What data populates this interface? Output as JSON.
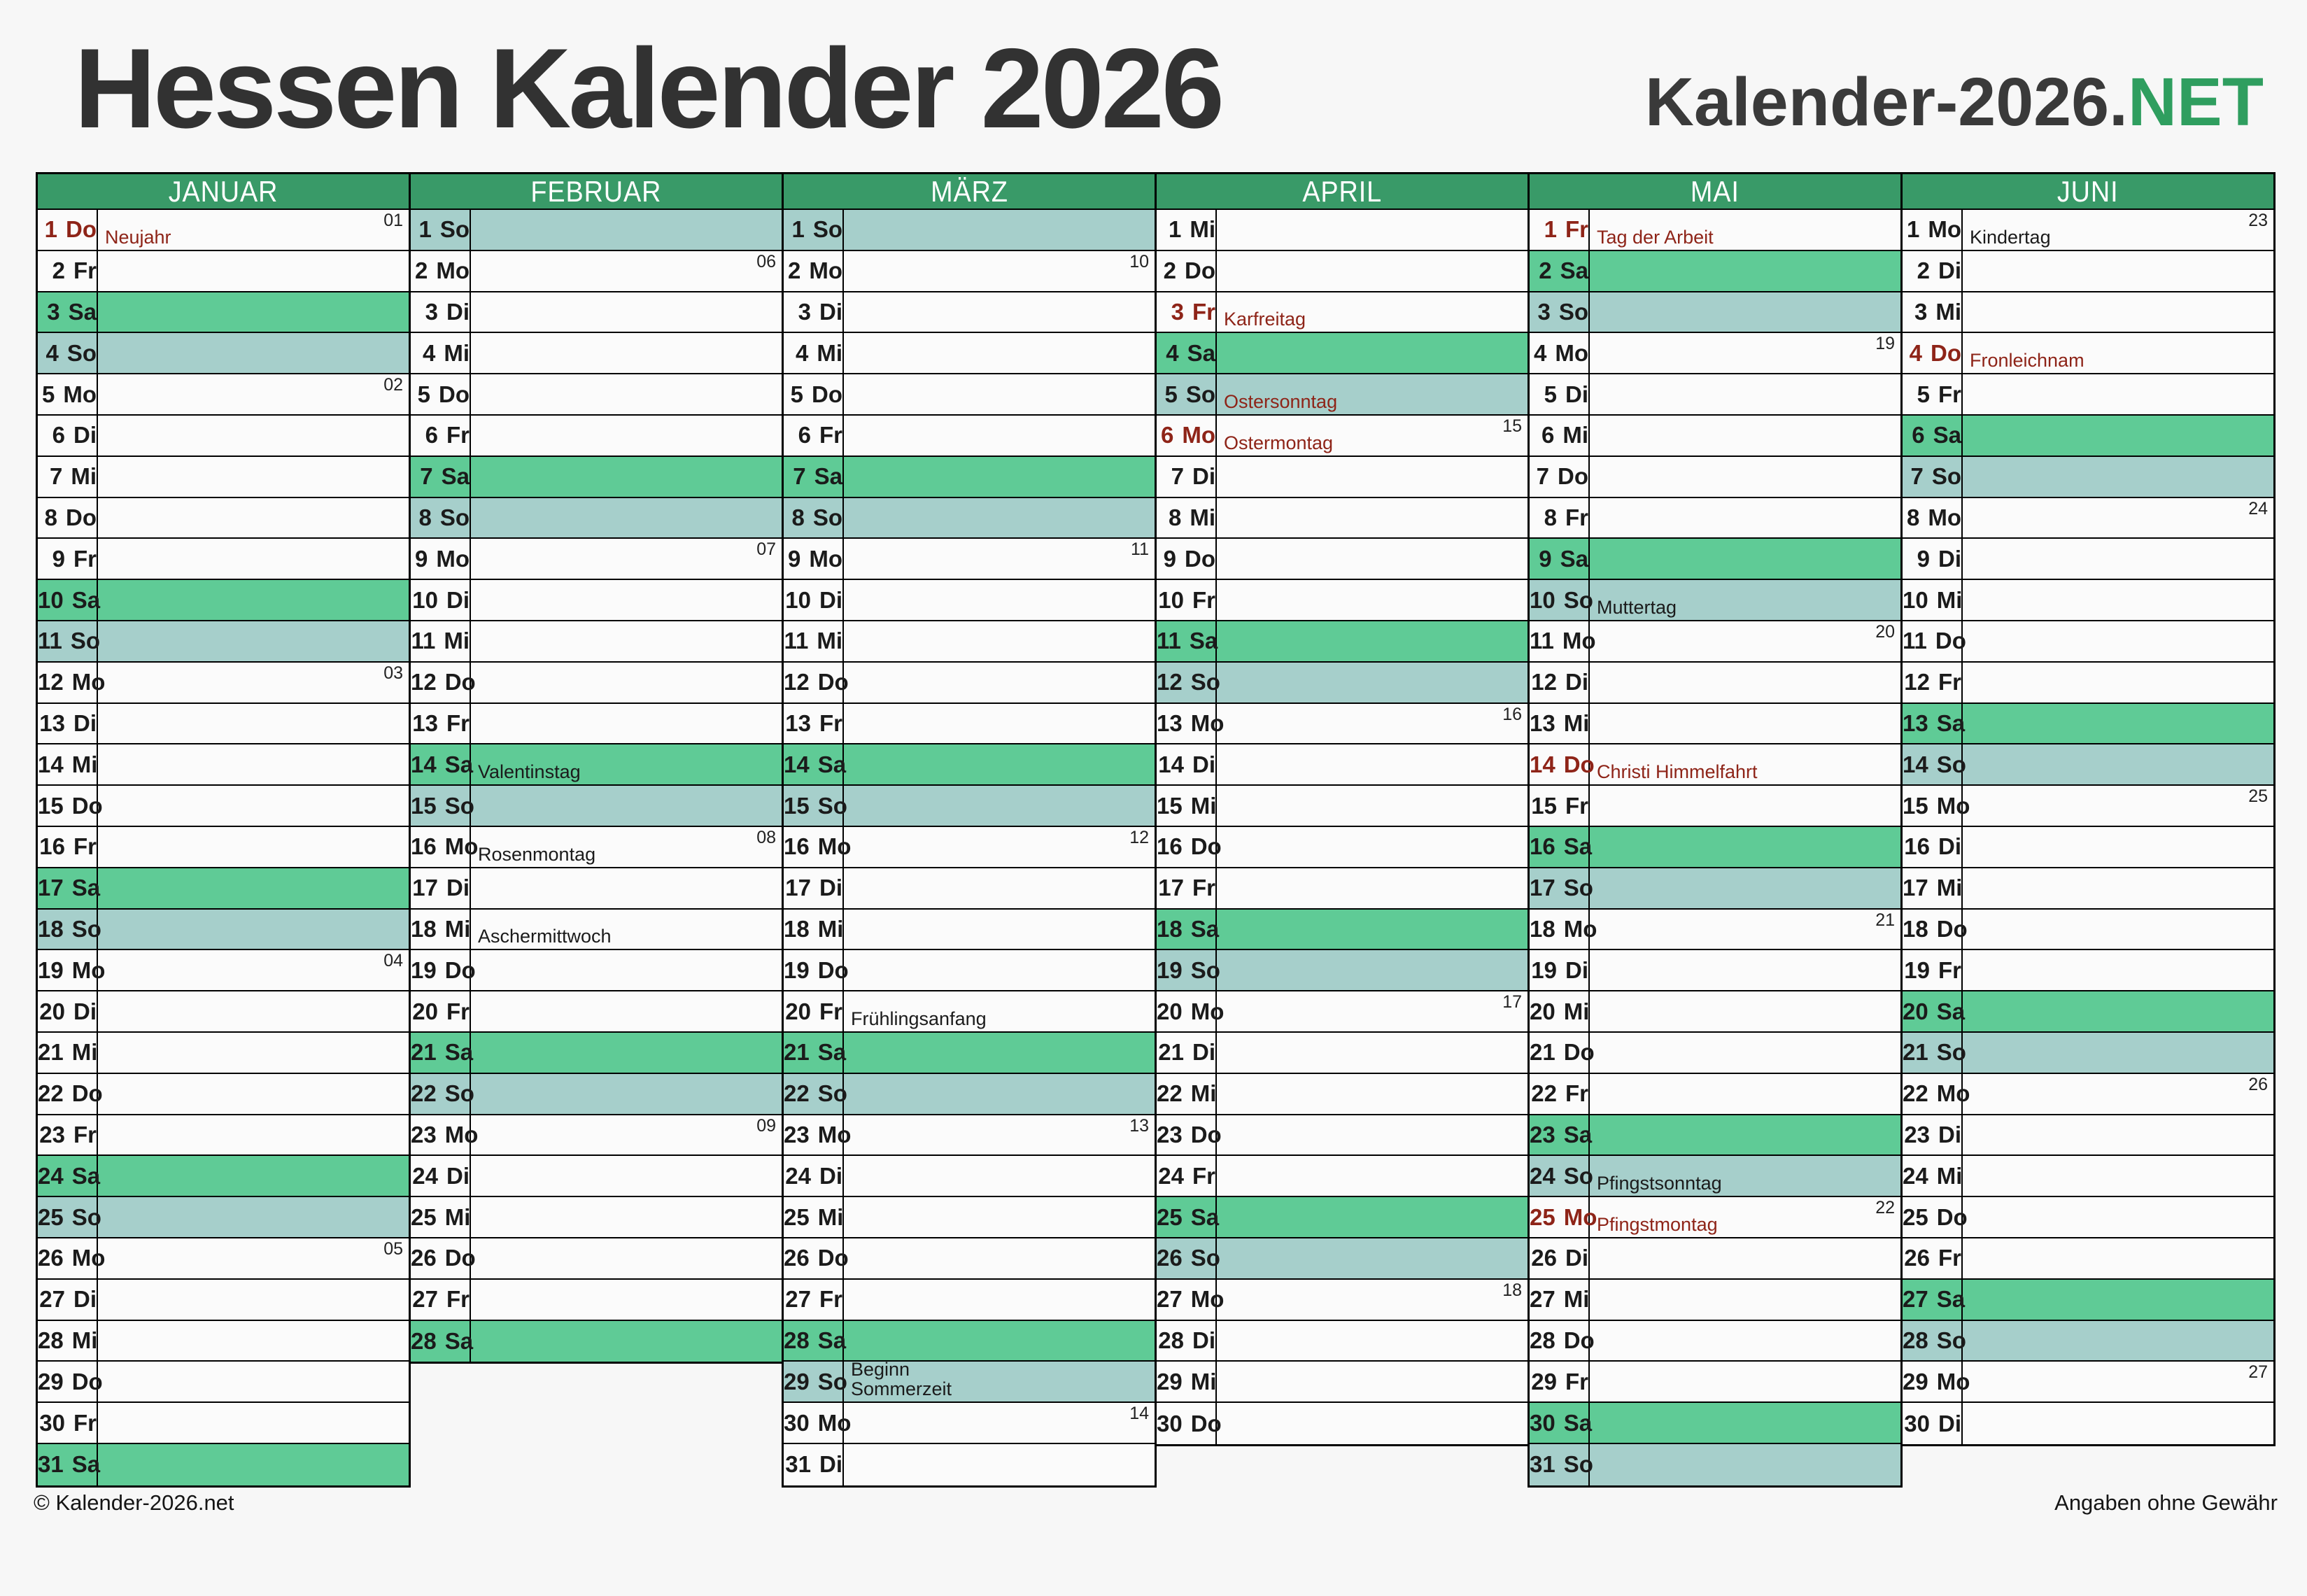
{
  "title": "Hessen Kalender 2026",
  "brand": {
    "prefix": "Kalender-2026.",
    "suffix": "NET"
  },
  "footer": {
    "left": "© Kalender-2026.net",
    "right": "Angaben ohne Gewähr"
  },
  "colors": {
    "header_green": "#399a68",
    "saturday_green": "#5fcb96",
    "sunday_teal": "#a6cfcb",
    "holiday_red": "#8e2418",
    "brand_green": "#2f9e5f",
    "title_gray": "#323232"
  },
  "months": [
    {
      "name": "JANUAR",
      "days": [
        {
          "d": 1,
          "w": "Do",
          "wk": "01",
          "n": "Neujahr",
          "nr": true,
          "hr": true
        },
        {
          "d": 2,
          "w": "Fr"
        },
        {
          "d": 3,
          "w": "Sa"
        },
        {
          "d": 4,
          "w": "So"
        },
        {
          "d": 5,
          "w": "Mo",
          "wk": "02"
        },
        {
          "d": 6,
          "w": "Di"
        },
        {
          "d": 7,
          "w": "Mi"
        },
        {
          "d": 8,
          "w": "Do"
        },
        {
          "d": 9,
          "w": "Fr"
        },
        {
          "d": 10,
          "w": "Sa"
        },
        {
          "d": 11,
          "w": "So"
        },
        {
          "d": 12,
          "w": "Mo",
          "wk": "03"
        },
        {
          "d": 13,
          "w": "Di"
        },
        {
          "d": 14,
          "w": "Mi"
        },
        {
          "d": 15,
          "w": "Do"
        },
        {
          "d": 16,
          "w": "Fr"
        },
        {
          "d": 17,
          "w": "Sa"
        },
        {
          "d": 18,
          "w": "So"
        },
        {
          "d": 19,
          "w": "Mo",
          "wk": "04"
        },
        {
          "d": 20,
          "w": "Di"
        },
        {
          "d": 21,
          "w": "Mi"
        },
        {
          "d": 22,
          "w": "Do"
        },
        {
          "d": 23,
          "w": "Fr"
        },
        {
          "d": 24,
          "w": "Sa"
        },
        {
          "d": 25,
          "w": "So"
        },
        {
          "d": 26,
          "w": "Mo",
          "wk": "05"
        },
        {
          "d": 27,
          "w": "Di"
        },
        {
          "d": 28,
          "w": "Mi"
        },
        {
          "d": 29,
          "w": "Do"
        },
        {
          "d": 30,
          "w": "Fr"
        },
        {
          "d": 31,
          "w": "Sa"
        }
      ]
    },
    {
      "name": "FEBRUAR",
      "days": [
        {
          "d": 1,
          "w": "So"
        },
        {
          "d": 2,
          "w": "Mo",
          "wk": "06"
        },
        {
          "d": 3,
          "w": "Di"
        },
        {
          "d": 4,
          "w": "Mi"
        },
        {
          "d": 5,
          "w": "Do"
        },
        {
          "d": 6,
          "w": "Fr"
        },
        {
          "d": 7,
          "w": "Sa"
        },
        {
          "d": 8,
          "w": "So"
        },
        {
          "d": 9,
          "w": "Mo",
          "wk": "07"
        },
        {
          "d": 10,
          "w": "Di"
        },
        {
          "d": 11,
          "w": "Mi"
        },
        {
          "d": 12,
          "w": "Do"
        },
        {
          "d": 13,
          "w": "Fr"
        },
        {
          "d": 14,
          "w": "Sa",
          "n": "Valentinstag"
        },
        {
          "d": 15,
          "w": "So"
        },
        {
          "d": 16,
          "w": "Mo",
          "wk": "08",
          "n": "Rosenmontag"
        },
        {
          "d": 17,
          "w": "Di"
        },
        {
          "d": 18,
          "w": "Mi",
          "n": "Aschermittwoch"
        },
        {
          "d": 19,
          "w": "Do"
        },
        {
          "d": 20,
          "w": "Fr"
        },
        {
          "d": 21,
          "w": "Sa"
        },
        {
          "d": 22,
          "w": "So"
        },
        {
          "d": 23,
          "w": "Mo",
          "wk": "09"
        },
        {
          "d": 24,
          "w": "Di"
        },
        {
          "d": 25,
          "w": "Mi"
        },
        {
          "d": 26,
          "w": "Do"
        },
        {
          "d": 27,
          "w": "Fr"
        },
        {
          "d": 28,
          "w": "Sa"
        }
      ]
    },
    {
      "name": "MÄRZ",
      "days": [
        {
          "d": 1,
          "w": "So"
        },
        {
          "d": 2,
          "w": "Mo",
          "wk": "10"
        },
        {
          "d": 3,
          "w": "Di"
        },
        {
          "d": 4,
          "w": "Mi"
        },
        {
          "d": 5,
          "w": "Do"
        },
        {
          "d": 6,
          "w": "Fr"
        },
        {
          "d": 7,
          "w": "Sa"
        },
        {
          "d": 8,
          "w": "So"
        },
        {
          "d": 9,
          "w": "Mo",
          "wk": "11"
        },
        {
          "d": 10,
          "w": "Di"
        },
        {
          "d": 11,
          "w": "Mi"
        },
        {
          "d": 12,
          "w": "Do"
        },
        {
          "d": 13,
          "w": "Fr"
        },
        {
          "d": 14,
          "w": "Sa"
        },
        {
          "d": 15,
          "w": "So"
        },
        {
          "d": 16,
          "w": "Mo",
          "wk": "12"
        },
        {
          "d": 17,
          "w": "Di"
        },
        {
          "d": 18,
          "w": "Mi"
        },
        {
          "d": 19,
          "w": "Do"
        },
        {
          "d": 20,
          "w": "Fr",
          "n": "Frühlingsanfang"
        },
        {
          "d": 21,
          "w": "Sa"
        },
        {
          "d": 22,
          "w": "So"
        },
        {
          "d": 23,
          "w": "Mo",
          "wk": "13"
        },
        {
          "d": 24,
          "w": "Di"
        },
        {
          "d": 25,
          "w": "Mi"
        },
        {
          "d": 26,
          "w": "Do"
        },
        {
          "d": 27,
          "w": "Fr"
        },
        {
          "d": 28,
          "w": "Sa"
        },
        {
          "d": 29,
          "w": "So",
          "n": "Beginn\nSommerzeit"
        },
        {
          "d": 30,
          "w": "Mo",
          "wk": "14"
        },
        {
          "d": 31,
          "w": "Di"
        }
      ]
    },
    {
      "name": "APRIL",
      "days": [
        {
          "d": 1,
          "w": "Mi"
        },
        {
          "d": 2,
          "w": "Do"
        },
        {
          "d": 3,
          "w": "Fr",
          "n": "Karfreitag",
          "nr": true,
          "hr": true
        },
        {
          "d": 4,
          "w": "Sa"
        },
        {
          "d": 5,
          "w": "So",
          "n": "Ostersonntag",
          "nr": true
        },
        {
          "d": 6,
          "w": "Mo",
          "wk": "15",
          "n": "Ostermontag",
          "nr": true,
          "hr": true
        },
        {
          "d": 7,
          "w": "Di"
        },
        {
          "d": 8,
          "w": "Mi"
        },
        {
          "d": 9,
          "w": "Do"
        },
        {
          "d": 10,
          "w": "Fr"
        },
        {
          "d": 11,
          "w": "Sa"
        },
        {
          "d": 12,
          "w": "So"
        },
        {
          "d": 13,
          "w": "Mo",
          "wk": "16"
        },
        {
          "d": 14,
          "w": "Di"
        },
        {
          "d": 15,
          "w": "Mi"
        },
        {
          "d": 16,
          "w": "Do"
        },
        {
          "d": 17,
          "w": "Fr"
        },
        {
          "d": 18,
          "w": "Sa"
        },
        {
          "d": 19,
          "w": "So"
        },
        {
          "d": 20,
          "w": "Mo",
          "wk": "17"
        },
        {
          "d": 21,
          "w": "Di"
        },
        {
          "d": 22,
          "w": "Mi"
        },
        {
          "d": 23,
          "w": "Do"
        },
        {
          "d": 24,
          "w": "Fr"
        },
        {
          "d": 25,
          "w": "Sa"
        },
        {
          "d": 26,
          "w": "So"
        },
        {
          "d": 27,
          "w": "Mo",
          "wk": "18"
        },
        {
          "d": 28,
          "w": "Di"
        },
        {
          "d": 29,
          "w": "Mi"
        },
        {
          "d": 30,
          "w": "Do"
        }
      ]
    },
    {
      "name": "MAI",
      "days": [
        {
          "d": 1,
          "w": "Fr",
          "n": "Tag der Arbeit",
          "nr": true,
          "hr": true
        },
        {
          "d": 2,
          "w": "Sa"
        },
        {
          "d": 3,
          "w": "So"
        },
        {
          "d": 4,
          "w": "Mo",
          "wk": "19"
        },
        {
          "d": 5,
          "w": "Di"
        },
        {
          "d": 6,
          "w": "Mi"
        },
        {
          "d": 7,
          "w": "Do"
        },
        {
          "d": 8,
          "w": "Fr"
        },
        {
          "d": 9,
          "w": "Sa"
        },
        {
          "d": 10,
          "w": "So",
          "n": "Muttertag"
        },
        {
          "d": 11,
          "w": "Mo",
          "wk": "20"
        },
        {
          "d": 12,
          "w": "Di"
        },
        {
          "d": 13,
          "w": "Mi"
        },
        {
          "d": 14,
          "w": "Do",
          "n": "Christi Himmelfahrt",
          "nr": true,
          "hr": true
        },
        {
          "d": 15,
          "w": "Fr"
        },
        {
          "d": 16,
          "w": "Sa"
        },
        {
          "d": 17,
          "w": "So"
        },
        {
          "d": 18,
          "w": "Mo",
          "wk": "21"
        },
        {
          "d": 19,
          "w": "Di"
        },
        {
          "d": 20,
          "w": "Mi"
        },
        {
          "d": 21,
          "w": "Do"
        },
        {
          "d": 22,
          "w": "Fr"
        },
        {
          "d": 23,
          "w": "Sa"
        },
        {
          "d": 24,
          "w": "So",
          "n": "Pfingstsonntag"
        },
        {
          "d": 25,
          "w": "Mo",
          "wk": "22",
          "n": "Pfingstmontag",
          "nr": true,
          "hr": true
        },
        {
          "d": 26,
          "w": "Di"
        },
        {
          "d": 27,
          "w": "Mi"
        },
        {
          "d": 28,
          "w": "Do"
        },
        {
          "d": 29,
          "w": "Fr"
        },
        {
          "d": 30,
          "w": "Sa"
        },
        {
          "d": 31,
          "w": "So"
        }
      ]
    },
    {
      "name": "JUNI",
      "days": [
        {
          "d": 1,
          "w": "Mo",
          "wk": "23",
          "n": "Kindertag"
        },
        {
          "d": 2,
          "w": "Di"
        },
        {
          "d": 3,
          "w": "Mi"
        },
        {
          "d": 4,
          "w": "Do",
          "n": "Fronleichnam",
          "nr": true,
          "hr": true
        },
        {
          "d": 5,
          "w": "Fr"
        },
        {
          "d": 6,
          "w": "Sa"
        },
        {
          "d": 7,
          "w": "So"
        },
        {
          "d": 8,
          "w": "Mo",
          "wk": "24"
        },
        {
          "d": 9,
          "w": "Di"
        },
        {
          "d": 10,
          "w": "Mi"
        },
        {
          "d": 11,
          "w": "Do"
        },
        {
          "d": 12,
          "w": "Fr"
        },
        {
          "d": 13,
          "w": "Sa"
        },
        {
          "d": 14,
          "w": "So"
        },
        {
          "d": 15,
          "w": "Mo",
          "wk": "25"
        },
        {
          "d": 16,
          "w": "Di"
        },
        {
          "d": 17,
          "w": "Mi"
        },
        {
          "d": 18,
          "w": "Do"
        },
        {
          "d": 19,
          "w": "Fr"
        },
        {
          "d": 20,
          "w": "Sa"
        },
        {
          "d": 21,
          "w": "So"
        },
        {
          "d": 22,
          "w": "Mo",
          "wk": "26"
        },
        {
          "d": 23,
          "w": "Di"
        },
        {
          "d": 24,
          "w": "Mi"
        },
        {
          "d": 25,
          "w": "Do"
        },
        {
          "d": 26,
          "w": "Fr"
        },
        {
          "d": 27,
          "w": "Sa"
        },
        {
          "d": 28,
          "w": "So"
        },
        {
          "d": 29,
          "w": "Mo",
          "wk": "27"
        },
        {
          "d": 30,
          "w": "Di"
        }
      ]
    }
  ]
}
